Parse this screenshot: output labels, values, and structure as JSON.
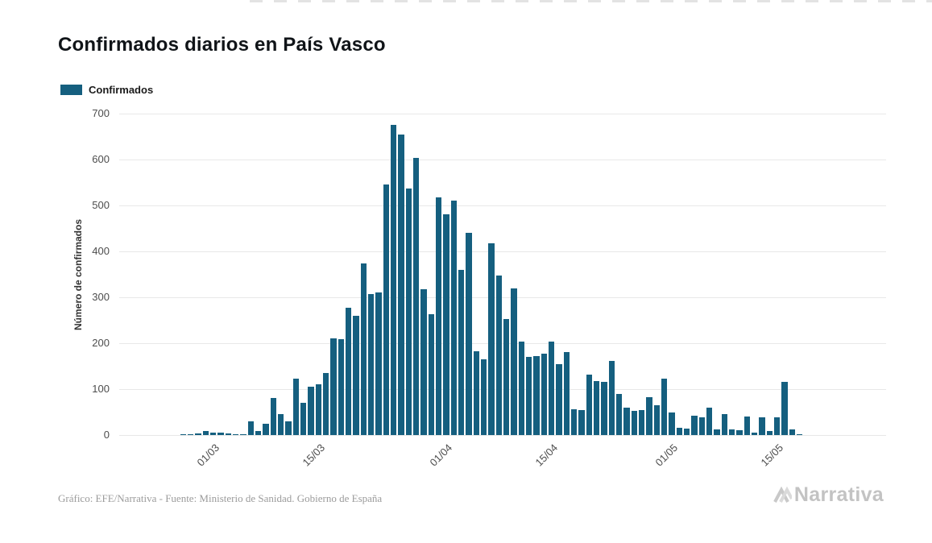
{
  "title": "Confirmados diarios en País Vasco",
  "legend": {
    "label": "Confirmados",
    "color": "#155f7f"
  },
  "footer": {
    "caption": "Gráfico: EFE/Narrativa - Fuente: Ministerio de Sanidad. Gobierno de España",
    "logo_text": "Narrativa"
  },
  "chart_data": {
    "type": "bar",
    "title": "Confirmados diarios en País Vasco",
    "series_name": "Confirmados",
    "xlabel": "",
    "ylabel": "Número de confirmados",
    "ylim": [
      0,
      700
    ],
    "y_ticks": [
      0,
      100,
      200,
      300,
      400,
      500,
      600,
      700
    ],
    "grid": "horizontal",
    "legend_position": "top-left",
    "bar_color": "#155f7f",
    "x_tick_labels": [
      "01/03",
      "15/03",
      "01/04",
      "15/04",
      "01/05",
      "15/05"
    ],
    "x_tick_indices": [
      12,
      26,
      43,
      57,
      73,
      87
    ],
    "values": [
      0,
      0,
      0,
      0,
      0,
      0,
      0,
      0,
      1,
      1,
      4,
      8,
      6,
      6,
      3,
      2,
      2,
      30,
      8,
      25,
      80,
      45,
      30,
      122,
      70,
      105,
      110,
      135,
      210,
      208,
      277,
      260,
      373,
      307,
      310,
      545,
      675,
      655,
      537,
      604,
      318,
      264,
      518,
      480,
      510,
      360,
      440,
      183,
      165,
      418,
      347,
      253,
      320,
      203,
      170,
      172,
      178,
      203,
      155,
      180,
      57,
      55,
      131,
      117,
      115,
      162,
      90,
      60,
      52,
      55,
      83,
      65,
      122,
      50,
      15,
      14,
      42,
      38,
      60,
      12,
      45,
      13,
      10,
      40,
      5,
      38,
      8,
      38,
      115,
      12,
      1,
      0,
      0,
      0,
      0,
      0,
      0,
      0,
      0,
      0,
      0,
      0
    ]
  }
}
